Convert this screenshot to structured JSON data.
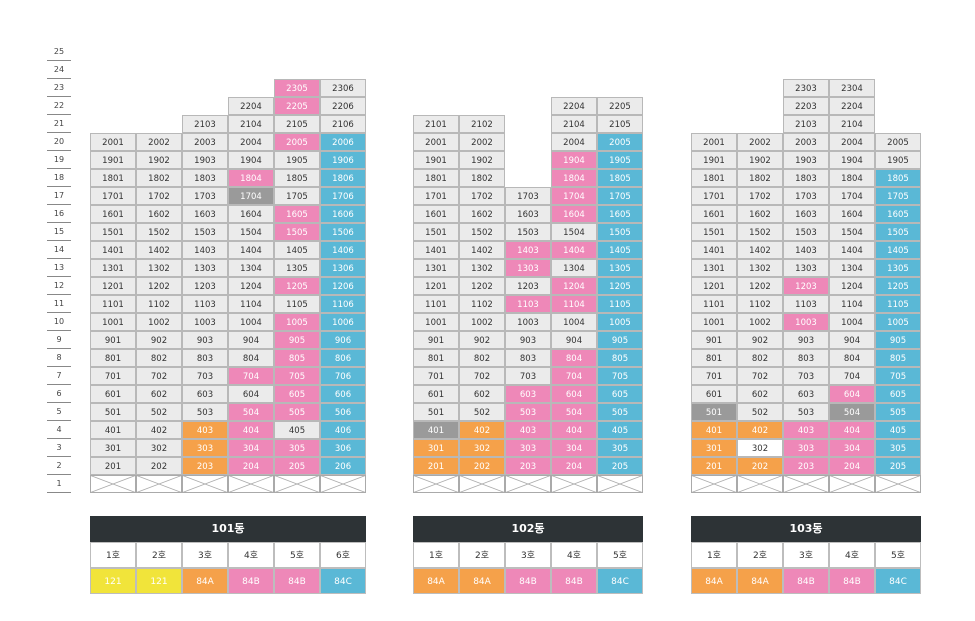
{
  "colors": {
    "w": "#ebebeb",
    "p": "#ee88b8",
    "b": "#5ab8d6",
    "o": "#f5a14a",
    "g": "#9a9a9a",
    "y": "#f1e43a",
    "s": "#ffffff"
  },
  "floors": [
    "25",
    "24",
    "23",
    "22",
    "21",
    "20",
    "19",
    "18",
    "17",
    "16",
    "15",
    "14",
    "13",
    "12",
    "11",
    "10",
    "9",
    "8",
    "7",
    "6",
    "5",
    "4",
    "3",
    "2",
    "1"
  ],
  "buildings": [
    {
      "name": "101동",
      "ho_labels": [
        "1호",
        "2호",
        "3호",
        "4호",
        "5호",
        "6호"
      ],
      "types": [
        {
          "label": "121",
          "color": "y"
        },
        {
          "label": "121",
          "color": "y"
        },
        {
          "label": "84A",
          "color": "o"
        },
        {
          "label": "84B",
          "color": "p"
        },
        {
          "label": "84B",
          "color": "p"
        },
        {
          "label": "84C",
          "color": "b"
        }
      ],
      "columns": [
        {
          "top": 20,
          "p": [],
          "b": [],
          "o": [],
          "g": []
        },
        {
          "top": 20,
          "p": [],
          "b": [],
          "o": [],
          "g": []
        },
        {
          "top": 21,
          "p": [],
          "b": [],
          "o": [
            2,
            3,
            4
          ],
          "g": []
        },
        {
          "top": 22,
          "p": [
            2,
            3,
            4,
            5,
            7,
            18
          ],
          "b": [],
          "o": [],
          "g": [
            17
          ]
        },
        {
          "top": 23,
          "p": [
            2,
            3,
            5,
            6,
            7,
            8,
            9,
            10,
            12,
            15,
            16,
            20,
            22,
            23
          ],
          "b": [],
          "o": [],
          "g": []
        },
        {
          "top": 23,
          "p": [],
          "b": [
            2,
            3,
            4,
            5,
            6,
            7,
            8,
            9,
            10,
            11,
            12,
            13,
            14,
            15,
            16,
            17,
            18,
            19,
            20
          ],
          "o": [],
          "g": []
        }
      ]
    },
    {
      "name": "102동",
      "ho_labels": [
        "1호",
        "2호",
        "3호",
        "4호",
        "5호"
      ],
      "types": [
        {
          "label": "84A",
          "color": "o"
        },
        {
          "label": "84A",
          "color": "o"
        },
        {
          "label": "84B",
          "color": "p"
        },
        {
          "label": "84B",
          "color": "p"
        },
        {
          "label": "84C",
          "color": "b"
        }
      ],
      "columns": [
        {
          "top": 21,
          "p": [],
          "b": [],
          "o": [
            2,
            3
          ],
          "g": [
            4
          ]
        },
        {
          "top": 21,
          "p": [],
          "b": [],
          "o": [
            2,
            3,
            4
          ],
          "g": []
        },
        {
          "top": 17,
          "p": [
            2,
            3,
            4,
            5,
            6,
            11,
            13,
            14
          ],
          "b": [],
          "o": [],
          "g": []
        },
        {
          "top": 22,
          "p": [
            2,
            3,
            4,
            5,
            6,
            7,
            8,
            11,
            12,
            14,
            16,
            17,
            18,
            19
          ],
          "b": [],
          "o": [],
          "g": []
        },
        {
          "top": 22,
          "p": [],
          "b": [
            2,
            3,
            4,
            5,
            6,
            7,
            8,
            9,
            10,
            11,
            12,
            13,
            14,
            15,
            16,
            17,
            18,
            19,
            20
          ],
          "o": [],
          "g": []
        }
      ]
    },
    {
      "name": "103동",
      "ho_labels": [
        "1호",
        "2호",
        "3호",
        "4호",
        "5호"
      ],
      "types": [
        {
          "label": "84A",
          "color": "o"
        },
        {
          "label": "84A",
          "color": "o"
        },
        {
          "label": "84B",
          "color": "p"
        },
        {
          "label": "84B",
          "color": "p"
        },
        {
          "label": "84C",
          "color": "b"
        }
      ],
      "columns": [
        {
          "top": 20,
          "p": [],
          "b": [],
          "o": [
            2,
            3,
            4
          ],
          "g": [
            5
          ]
        },
        {
          "top": 20,
          "p": [],
          "b": [],
          "o": [
            2,
            4
          ],
          "g": [],
          "s": [
            3
          ]
        },
        {
          "top": 23,
          "p": [
            2,
            3,
            4,
            10,
            12
          ],
          "b": [],
          "o": [],
          "g": []
        },
        {
          "top": 23,
          "p": [
            2,
            3,
            4,
            6
          ],
          "b": [],
          "o": [],
          "g": [
            5
          ]
        },
        {
          "top": 20,
          "p": [],
          "b": [
            2,
            3,
            4,
            5,
            6,
            7,
            8,
            9,
            10,
            11,
            12,
            13,
            14,
            15,
            16,
            17,
            18
          ],
          "o": [],
          "g": []
        }
      ]
    }
  ]
}
